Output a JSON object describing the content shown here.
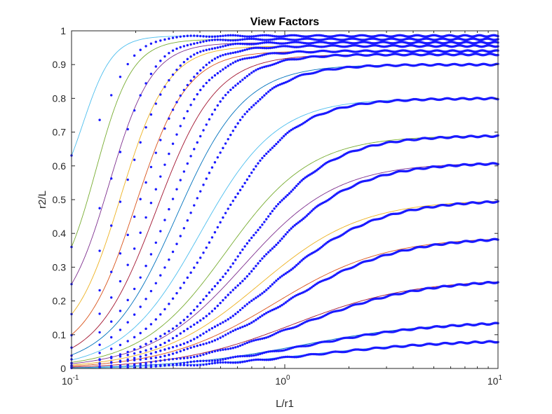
{
  "chart_data": {
    "type": "line",
    "title": "View Factors",
    "xlabel": "L/r1",
    "ylabel": "r2/L",
    "xscale": "log",
    "xlim": [
      0.1,
      10
    ],
    "ylim": [
      0,
      1
    ],
    "grid": false,
    "legend": "none",
    "x_ticks": [
      {
        "base": "10",
        "exp": "-1"
      },
      {
        "base": "10",
        "exp": "0"
      },
      {
        "base": "10",
        "exp": "1"
      }
    ],
    "y_ticks": [
      "0",
      "0.1",
      "0.2",
      "0.3",
      "0.4",
      "0.5",
      "0.6",
      "0.7",
      "0.8",
      "0.9",
      "1"
    ],
    "line_colors": [
      "#4dbeee",
      "#77ac30",
      "#7e2f8e",
      "#edb120",
      "#d95319",
      "#a2142f",
      "#0072bd"
    ],
    "marker_color": "#1a1aff",
    "series": [
      {
        "asymptote": 0.985,
        "x_mid": 0.113,
        "x_mid_sim": 0.15,
        "width": 0.07,
        "y_start": 0.63
      },
      {
        "asymptote": 0.975,
        "x_mid": 0.13,
        "x_mid_sim": 0.17,
        "width": 0.085,
        "y_start": 0.36
      },
      {
        "asymptote": 0.965,
        "x_mid": 0.15,
        "x_mid_sim": 0.19,
        "width": 0.1,
        "y_start": 0.25
      },
      {
        "asymptote": 0.955,
        "x_mid": 0.17,
        "x_mid_sim": 0.22,
        "width": 0.11,
        "y_start": 0.16
      },
      {
        "asymptote": 0.94,
        "x_mid": 0.2,
        "x_mid_sim": 0.24,
        "width": 0.12,
        "y_start": 0.1
      },
      {
        "asymptote": 0.93,
        "x_mid": 0.25,
        "x_mid_sim": 0.29,
        "width": 0.14,
        "y_start": 0.06
      },
      {
        "asymptote": 0.9,
        "x_mid": 0.31,
        "x_mid_sim": 0.36,
        "width": 0.16,
        "y_start": 0.04
      },
      {
        "asymptote": 0.8,
        "x_mid": 0.4,
        "x_mid_sim": 0.47,
        "width": 0.18,
        "y_start": 0.025
      },
      {
        "asymptote": 0.69,
        "x_mid": 0.53,
        "x_mid_sim": 0.63,
        "width": 0.2,
        "y_start": 0.018
      },
      {
        "asymptote": 0.61,
        "x_mid": 0.64,
        "x_mid_sim": 0.74,
        "width": 0.22,
        "y_start": 0.014
      },
      {
        "asymptote": 0.5,
        "x_mid": 0.76,
        "x_mid_sim": 0.88,
        "width": 0.24,
        "y_start": 0.01
      },
      {
        "asymptote": 0.39,
        "x_mid": 0.9,
        "x_mid_sim": 1.0,
        "width": 0.26,
        "y_start": 0.007
      },
      {
        "asymptote": 0.265,
        "x_mid": 1.1,
        "x_mid_sim": 1.2,
        "width": 0.28,
        "y_start": 0.004
      },
      {
        "asymptote": 0.14,
        "x_mid": 1.2,
        "x_mid_sim": 1.3,
        "width": 0.3,
        "y_start": 0.002
      },
      {
        "asymptote": 0.085,
        "x_mid": 1.3,
        "x_mid_sim": 1.4,
        "width": 0.32,
        "y_start": 0.001
      }
    ]
  }
}
